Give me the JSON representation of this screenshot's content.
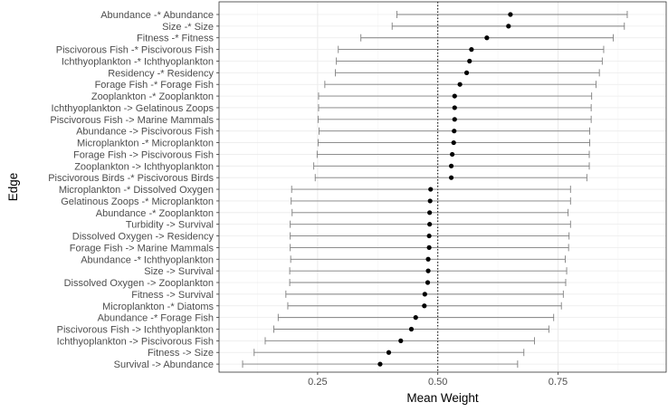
{
  "chart_data": {
    "type": "dot_errorbar",
    "xlabel": "Mean Weight",
    "ylabel": "Edge",
    "xlim": [
      0.045,
      0.975
    ],
    "x_ticks": [
      0.25,
      0.5,
      0.75
    ],
    "x_tick_labels": [
      "0.25",
      "0.50",
      "0.75"
    ],
    "reference_line": {
      "x": 0.5,
      "style": "dotted"
    },
    "grid": true,
    "colors": {
      "panel_border": "#333333",
      "grid_major": "#ebebeb",
      "grid_minor": "#f5f5f5",
      "interval": "#7f7f7f",
      "point": "#000000"
    },
    "points": [
      {
        "label": "Abundance -* Abundance",
        "mean": 0.651,
        "lo": 0.415,
        "hi": 0.894
      },
      {
        "label": "Size -* Size",
        "mean": 0.647,
        "lo": 0.405,
        "hi": 0.888
      },
      {
        "label": "Fitness -* Fitness",
        "mean": 0.602,
        "lo": 0.34,
        "hi": 0.865
      },
      {
        "label": "Piscivorous Fish -* Piscivorous Fish",
        "mean": 0.57,
        "lo": 0.293,
        "hi": 0.845
      },
      {
        "label": "Ichthyoplankton -* Ichthyoplankton",
        "mean": 0.566,
        "lo": 0.289,
        "hi": 0.842
      },
      {
        "label": "Residency -* Residency",
        "mean": 0.56,
        "lo": 0.287,
        "hi": 0.836
      },
      {
        "label": "Forage Fish -* Forage Fish",
        "mean": 0.546,
        "lo": 0.265,
        "hi": 0.829
      },
      {
        "label": "Zooplankton -* Zooplankton",
        "mean": 0.535,
        "lo": 0.252,
        "hi": 0.82
      },
      {
        "label": "Ichthyoplankton -> Gelatinous Zoops",
        "mean": 0.535,
        "lo": 0.252,
        "hi": 0.819
      },
      {
        "label": "Piscivorous Fish -> Marine Mammals",
        "mean": 0.535,
        "lo": 0.251,
        "hi": 0.819
      },
      {
        "label": "Abundance -> Piscivorous Fish",
        "mean": 0.534,
        "lo": 0.253,
        "hi": 0.816
      },
      {
        "label": "Microplankton -* Microplankton",
        "mean": 0.533,
        "lo": 0.251,
        "hi": 0.816
      },
      {
        "label": "Forage Fish -> Piscivorous Fish",
        "mean": 0.53,
        "lo": 0.249,
        "hi": 0.815
      },
      {
        "label": "Zooplankton -> Ichthyoplankton",
        "mean": 0.528,
        "lo": 0.242,
        "hi": 0.815
      },
      {
        "label": "Piscivorous Birds -* Piscivorous Birds",
        "mean": 0.528,
        "lo": 0.245,
        "hi": 0.81
      },
      {
        "label": "Microplankton -* Dissolved Oxygen",
        "mean": 0.485,
        "lo": 0.196,
        "hi": 0.776
      },
      {
        "label": "Gelatinous Zoops -* Microplankton",
        "mean": 0.484,
        "lo": 0.195,
        "hi": 0.776
      },
      {
        "label": "Abundance -* Zooplankton",
        "mean": 0.483,
        "lo": 0.197,
        "hi": 0.771
      },
      {
        "label": "Turbidity -> Survival",
        "mean": 0.483,
        "lo": 0.193,
        "hi": 0.776
      },
      {
        "label": "Dissolved Oxygen -> Residency",
        "mean": 0.482,
        "lo": 0.193,
        "hi": 0.773
      },
      {
        "label": "Forage Fish -> Marine Mammals",
        "mean": 0.482,
        "lo": 0.193,
        "hi": 0.772
      },
      {
        "label": "Abundance -* Ichthyoplankton",
        "mean": 0.48,
        "lo": 0.194,
        "hi": 0.765
      },
      {
        "label": "Size -> Survival",
        "mean": 0.48,
        "lo": 0.192,
        "hi": 0.768
      },
      {
        "label": "Dissolved Oxygen -> Zooplankton",
        "mean": 0.479,
        "lo": 0.192,
        "hi": 0.766
      },
      {
        "label": "Fitness -> Survival",
        "mean": 0.473,
        "lo": 0.184,
        "hi": 0.761
      },
      {
        "label": "Microplankton -* Diatoms",
        "mean": 0.472,
        "lo": 0.188,
        "hi": 0.757
      },
      {
        "label": "Abundance -* Forage Fish",
        "mean": 0.454,
        "lo": 0.168,
        "hi": 0.741
      },
      {
        "label": "Piscivorous Fish -> Ichthyoplankton",
        "mean": 0.445,
        "lo": 0.159,
        "hi": 0.731
      },
      {
        "label": "Ichthyoplankton -> Piscivorous Fish",
        "mean": 0.423,
        "lo": 0.141,
        "hi": 0.701
      },
      {
        "label": "Fitness -> Size",
        "mean": 0.398,
        "lo": 0.118,
        "hi": 0.679
      },
      {
        "label": "Survival -> Abundance",
        "mean": 0.38,
        "lo": 0.094,
        "hi": 0.666
      }
    ]
  }
}
